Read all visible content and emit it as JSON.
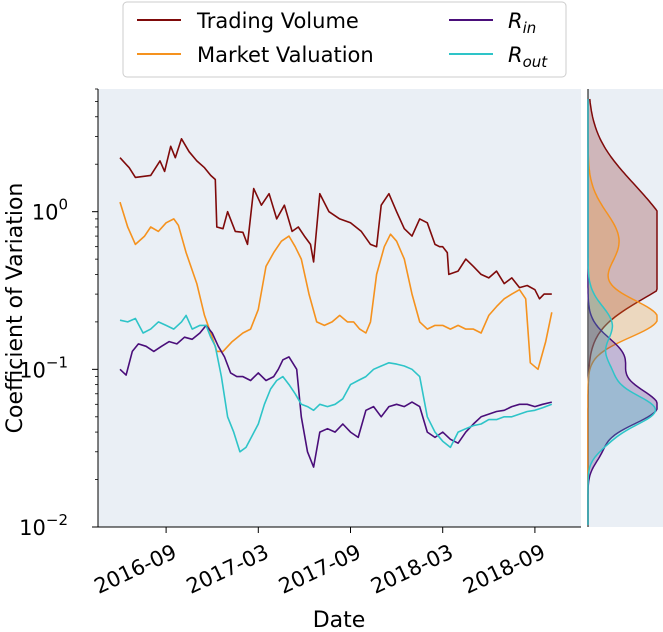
{
  "chart_data": {
    "type": "line",
    "title": "",
    "xlabel": "Date",
    "ylabel": "Coefficient of Variation",
    "yscale": "log",
    "ylim": [
      0.01,
      6.0
    ],
    "x_ticks": [
      "2016-09",
      "2017-03",
      "2017-09",
      "2018-03",
      "2018-09"
    ],
    "y_ticks": [
      {
        "value": 0.01,
        "base": "10",
        "exp": "−2"
      },
      {
        "value": 0.1,
        "base": "10",
        "exp": "−1"
      },
      {
        "value": 1.0,
        "base": "10",
        "exp": "0"
      }
    ],
    "legend": {
      "location": "top-center",
      "entries": [
        {
          "name": "Trading Volume",
          "color": "#7f0a0a"
        },
        {
          "name": "Market Valuation",
          "color": "#f5921e"
        },
        {
          "name": "R_in",
          "color": "#4a0e7a"
        },
        {
          "name": "R_out",
          "color": "#2ec4c8"
        }
      ]
    },
    "legend_math": {
      "R_in": {
        "main": "R",
        "sub": "in"
      },
      "R_out": {
        "main": "R",
        "sub": "out"
      }
    },
    "x_date_months": {
      "start": "2016-06",
      "end": "2018-12"
    },
    "series": [
      {
        "name": "Trading Volume",
        "color": "#7f0a0a",
        "points": [
          [
            0.0,
            2.2
          ],
          [
            0.6,
            1.9
          ],
          [
            1.0,
            1.65
          ],
          [
            2.0,
            1.7
          ],
          [
            2.6,
            2.1
          ],
          [
            2.9,
            1.8
          ],
          [
            3.3,
            2.6
          ],
          [
            3.6,
            2.2
          ],
          [
            4.0,
            2.9
          ],
          [
            4.5,
            2.4
          ],
          [
            5.0,
            2.1
          ],
          [
            5.5,
            1.9
          ],
          [
            5.9,
            1.7
          ],
          [
            6.2,
            1.6
          ],
          [
            6.3,
            0.8
          ],
          [
            6.7,
            0.78
          ],
          [
            7.0,
            1.0
          ],
          [
            7.5,
            0.75
          ],
          [
            8.0,
            0.74
          ],
          [
            8.3,
            0.62
          ],
          [
            8.7,
            1.4
          ],
          [
            9.2,
            1.1
          ],
          [
            9.7,
            1.3
          ],
          [
            10.2,
            0.9
          ],
          [
            10.7,
            1.1
          ],
          [
            11.2,
            0.75
          ],
          [
            11.6,
            0.8
          ],
          [
            12.0,
            0.7
          ],
          [
            12.4,
            0.62
          ],
          [
            12.6,
            0.48
          ],
          [
            13.0,
            1.3
          ],
          [
            13.6,
            1.0
          ],
          [
            14.3,
            0.9
          ],
          [
            15.0,
            0.85
          ],
          [
            15.7,
            0.75
          ],
          [
            16.3,
            0.62
          ],
          [
            16.7,
            0.6
          ],
          [
            17.0,
            1.1
          ],
          [
            17.5,
            1.3
          ],
          [
            18.0,
            1.0
          ],
          [
            18.5,
            0.78
          ],
          [
            19.0,
            0.7
          ],
          [
            19.5,
            0.9
          ],
          [
            20.0,
            0.85
          ],
          [
            20.5,
            0.62
          ],
          [
            20.8,
            0.6
          ],
          [
            21.0,
            0.6
          ],
          [
            21.3,
            0.55
          ],
          [
            21.4,
            0.4
          ],
          [
            22.0,
            0.42
          ],
          [
            22.5,
            0.5
          ],
          [
            23.0,
            0.45
          ],
          [
            23.5,
            0.4
          ],
          [
            24.0,
            0.38
          ],
          [
            24.5,
            0.42
          ],
          [
            25.0,
            0.35
          ],
          [
            25.5,
            0.38
          ],
          [
            26.0,
            0.33
          ],
          [
            26.5,
            0.34
          ],
          [
            27.0,
            0.32
          ],
          [
            27.3,
            0.28
          ],
          [
            27.6,
            0.3
          ],
          [
            28.1,
            0.3
          ]
        ]
      },
      {
        "name": "Market Valuation",
        "color": "#f5921e",
        "points": [
          [
            0.0,
            1.15
          ],
          [
            0.5,
            0.8
          ],
          [
            1.0,
            0.62
          ],
          [
            1.6,
            0.7
          ],
          [
            2.0,
            0.8
          ],
          [
            2.5,
            0.75
          ],
          [
            3.0,
            0.85
          ],
          [
            3.5,
            0.9
          ],
          [
            3.8,
            0.82
          ],
          [
            4.3,
            0.55
          ],
          [
            5.0,
            0.35
          ],
          [
            5.5,
            0.22
          ],
          [
            6.0,
            0.16
          ],
          [
            6.3,
            0.13
          ],
          [
            6.7,
            0.13
          ],
          [
            7.3,
            0.15
          ],
          [
            8.0,
            0.17
          ],
          [
            8.5,
            0.18
          ],
          [
            9.0,
            0.24
          ],
          [
            9.5,
            0.45
          ],
          [
            10.0,
            0.55
          ],
          [
            10.5,
            0.65
          ],
          [
            11.0,
            0.7
          ],
          [
            11.4,
            0.6
          ],
          [
            11.8,
            0.5
          ],
          [
            12.3,
            0.3
          ],
          [
            12.8,
            0.2
          ],
          [
            13.3,
            0.19
          ],
          [
            13.8,
            0.2
          ],
          [
            14.3,
            0.22
          ],
          [
            14.8,
            0.2
          ],
          [
            15.2,
            0.2
          ],
          [
            15.6,
            0.18
          ],
          [
            16.0,
            0.17
          ],
          [
            16.3,
            0.2
          ],
          [
            16.7,
            0.4
          ],
          [
            17.2,
            0.6
          ],
          [
            17.6,
            0.72
          ],
          [
            18.0,
            0.65
          ],
          [
            18.5,
            0.5
          ],
          [
            19.0,
            0.3
          ],
          [
            19.5,
            0.2
          ],
          [
            20.0,
            0.18
          ],
          [
            20.5,
            0.19
          ],
          [
            21.0,
            0.19
          ],
          [
            21.5,
            0.18
          ],
          [
            22.0,
            0.19
          ],
          [
            22.5,
            0.18
          ],
          [
            23.0,
            0.18
          ],
          [
            23.5,
            0.17
          ],
          [
            24.0,
            0.22
          ],
          [
            24.5,
            0.25
          ],
          [
            25.0,
            0.28
          ],
          [
            25.5,
            0.3
          ],
          [
            26.0,
            0.32
          ],
          [
            26.4,
            0.28
          ],
          [
            26.7,
            0.11
          ],
          [
            27.2,
            0.1
          ],
          [
            27.7,
            0.15
          ],
          [
            28.1,
            0.23
          ]
        ]
      },
      {
        "name": "R_in",
        "color": "#4a0e7a",
        "points": [
          [
            0.0,
            0.1
          ],
          [
            0.4,
            0.092
          ],
          [
            0.8,
            0.13
          ],
          [
            1.2,
            0.145
          ],
          [
            1.7,
            0.14
          ],
          [
            2.2,
            0.13
          ],
          [
            2.7,
            0.14
          ],
          [
            3.2,
            0.15
          ],
          [
            3.7,
            0.145
          ],
          [
            4.2,
            0.16
          ],
          [
            4.7,
            0.155
          ],
          [
            5.2,
            0.17
          ],
          [
            5.6,
            0.19
          ],
          [
            6.0,
            0.17
          ],
          [
            6.4,
            0.14
          ],
          [
            6.8,
            0.12
          ],
          [
            7.2,
            0.095
          ],
          [
            7.6,
            0.09
          ],
          [
            8.0,
            0.09
          ],
          [
            8.5,
            0.085
          ],
          [
            9.0,
            0.095
          ],
          [
            9.5,
            0.085
          ],
          [
            10.0,
            0.09
          ],
          [
            10.3,
            0.1
          ],
          [
            10.6,
            0.115
          ],
          [
            11.0,
            0.12
          ],
          [
            11.5,
            0.1
          ],
          [
            11.8,
            0.05
          ],
          [
            12.2,
            0.03
          ],
          [
            12.6,
            0.024
          ],
          [
            13.0,
            0.04
          ],
          [
            13.5,
            0.042
          ],
          [
            14.0,
            0.04
          ],
          [
            14.5,
            0.045
          ],
          [
            15.0,
            0.04
          ],
          [
            15.5,
            0.037
          ],
          [
            16.0,
            0.055
          ],
          [
            16.5,
            0.058
          ],
          [
            17.0,
            0.05
          ],
          [
            17.5,
            0.058
          ],
          [
            18.0,
            0.06
          ],
          [
            18.5,
            0.058
          ],
          [
            19.0,
            0.062
          ],
          [
            19.5,
            0.058
          ],
          [
            20.0,
            0.04
          ],
          [
            20.5,
            0.037
          ],
          [
            21.0,
            0.04
          ],
          [
            21.5,
            0.036
          ],
          [
            22.0,
            0.034
          ],
          [
            22.5,
            0.04
          ],
          [
            23.0,
            0.045
          ],
          [
            23.5,
            0.05
          ],
          [
            24.0,
            0.052
          ],
          [
            24.5,
            0.054
          ],
          [
            25.0,
            0.055
          ],
          [
            25.5,
            0.058
          ],
          [
            26.0,
            0.06
          ],
          [
            26.5,
            0.06
          ],
          [
            27.0,
            0.058
          ],
          [
            27.5,
            0.06
          ],
          [
            28.1,
            0.062
          ]
        ]
      },
      {
        "name": "R_out",
        "color": "#2ec4c8",
        "points": [
          [
            0.0,
            0.205
          ],
          [
            0.5,
            0.2
          ],
          [
            1.0,
            0.21
          ],
          [
            1.5,
            0.17
          ],
          [
            2.0,
            0.18
          ],
          [
            2.5,
            0.2
          ],
          [
            3.0,
            0.19
          ],
          [
            3.5,
            0.18
          ],
          [
            4.0,
            0.2
          ],
          [
            4.3,
            0.22
          ],
          [
            4.7,
            0.18
          ],
          [
            5.2,
            0.19
          ],
          [
            5.6,
            0.19
          ],
          [
            5.9,
            0.16
          ],
          [
            6.2,
            0.14
          ],
          [
            6.6,
            0.09
          ],
          [
            7.0,
            0.05
          ],
          [
            7.4,
            0.04
          ],
          [
            7.8,
            0.03
          ],
          [
            8.2,
            0.032
          ],
          [
            8.6,
            0.038
          ],
          [
            9.0,
            0.045
          ],
          [
            9.4,
            0.06
          ],
          [
            9.8,
            0.075
          ],
          [
            10.2,
            0.085
          ],
          [
            10.6,
            0.09
          ],
          [
            11.0,
            0.08
          ],
          [
            11.4,
            0.07
          ],
          [
            11.8,
            0.06
          ],
          [
            12.2,
            0.058
          ],
          [
            12.6,
            0.055
          ],
          [
            13.0,
            0.06
          ],
          [
            13.5,
            0.058
          ],
          [
            14.0,
            0.06
          ],
          [
            14.5,
            0.065
          ],
          [
            15.0,
            0.08
          ],
          [
            15.5,
            0.085
          ],
          [
            16.0,
            0.09
          ],
          [
            16.5,
            0.1
          ],
          [
            17.0,
            0.105
          ],
          [
            17.5,
            0.11
          ],
          [
            18.0,
            0.108
          ],
          [
            18.5,
            0.105
          ],
          [
            19.0,
            0.1
          ],
          [
            19.5,
            0.09
          ],
          [
            20.0,
            0.05
          ],
          [
            20.5,
            0.04
          ],
          [
            21.0,
            0.035
          ],
          [
            21.5,
            0.032
          ],
          [
            22.0,
            0.04
          ],
          [
            22.5,
            0.042
          ],
          [
            23.0,
            0.044
          ],
          [
            23.5,
            0.045
          ],
          [
            24.0,
            0.048
          ],
          [
            24.5,
            0.048
          ],
          [
            25.0,
            0.05
          ],
          [
            25.5,
            0.05
          ],
          [
            26.0,
            0.052
          ],
          [
            26.5,
            0.054
          ],
          [
            27.0,
            0.055
          ],
          [
            27.5,
            0.057
          ],
          [
            28.1,
            0.06
          ]
        ]
      }
    ],
    "marginal_density": {
      "orientation": "vertical",
      "description_series": [
        "Trading Volume",
        "Market Valuation",
        "R_in",
        "R_out"
      ],
      "peaks": {
        "Trading Volume": [
          {
            "center": 0.8,
            "height": 1.0,
            "sigma": 0.3
          },
          {
            "center": 0.4,
            "height": 0.7,
            "sigma": 0.18
          }
        ],
        "Market Valuation": [
          {
            "center": 0.21,
            "height": 1.0,
            "sigma": 0.12
          },
          {
            "center": 0.65,
            "height": 0.45,
            "sigma": 0.18
          }
        ],
        "R_in": [
          {
            "center": 0.058,
            "height": 1.0,
            "sigma": 0.12
          },
          {
            "center": 0.12,
            "height": 0.5,
            "sigma": 0.12
          },
          {
            "center": 0.03,
            "height": 0.15,
            "sigma": 0.08
          }
        ],
        "R_out": [
          {
            "center": 0.055,
            "height": 0.95,
            "sigma": 0.1
          },
          {
            "center": 0.19,
            "height": 0.35,
            "sigma": 0.12
          },
          {
            "center": 0.095,
            "height": 0.3,
            "sigma": 0.1
          },
          {
            "center": 0.035,
            "height": 0.2,
            "sigma": 0.08
          }
        ]
      }
    }
  }
}
